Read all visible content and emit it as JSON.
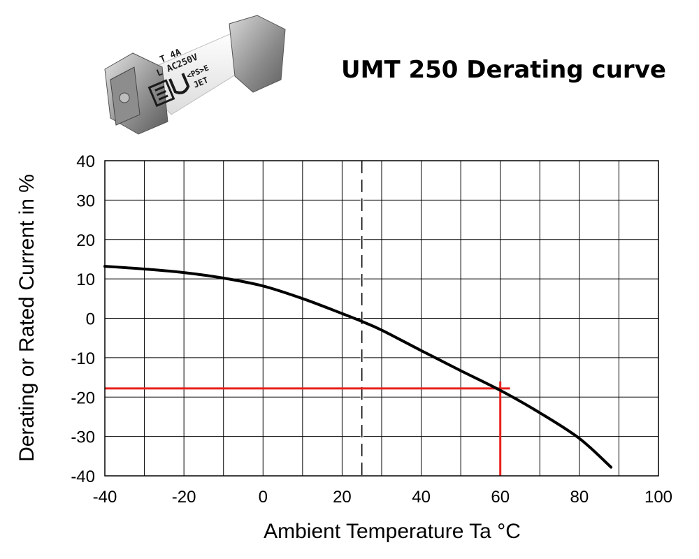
{
  "product_image": {
    "icon": "fuse-photo",
    "markings": [
      "T 4A",
      "L AC250V",
      "<PS>E",
      "JET"
    ]
  },
  "chart_data": {
    "type": "line",
    "title": "UMT 250 Derating curve",
    "xlabel": "Ambient Temperature Ta °C",
    "ylabel": "Derating or Rated Current in %",
    "xlim": [
      -40,
      100
    ],
    "ylim": [
      -40,
      40
    ],
    "x_ticks": [
      -40,
      -20,
      0,
      20,
      40,
      60,
      80,
      100
    ],
    "y_ticks": [
      40,
      30,
      20,
      10,
      0,
      -10,
      -20,
      -30,
      -40
    ],
    "grid": true,
    "grid_x_step": 10,
    "grid_y_step": 10,
    "series": [
      {
        "color": "#000000",
        "points": [
          [
            -40,
            13.2
          ],
          [
            -30,
            12.5
          ],
          [
            -20,
            11.6
          ],
          [
            -10,
            10.2
          ],
          [
            0,
            8.2
          ],
          [
            10,
            5.0
          ],
          [
            20,
            1.2
          ],
          [
            25,
            -0.8
          ],
          [
            30,
            -3.0
          ],
          [
            40,
            -8.2
          ],
          [
            50,
            -13.3
          ],
          [
            60,
            -18.3
          ],
          [
            70,
            -24.0
          ],
          [
            80,
            -30.5
          ],
          [
            88,
            -37.8
          ]
        ]
      }
    ],
    "reference_line": {
      "x": 25,
      "style": "dashed",
      "color": "#000000"
    },
    "marker_lines": {
      "x": 60,
      "y": -17.8,
      "color": "#e8201c"
    }
  }
}
